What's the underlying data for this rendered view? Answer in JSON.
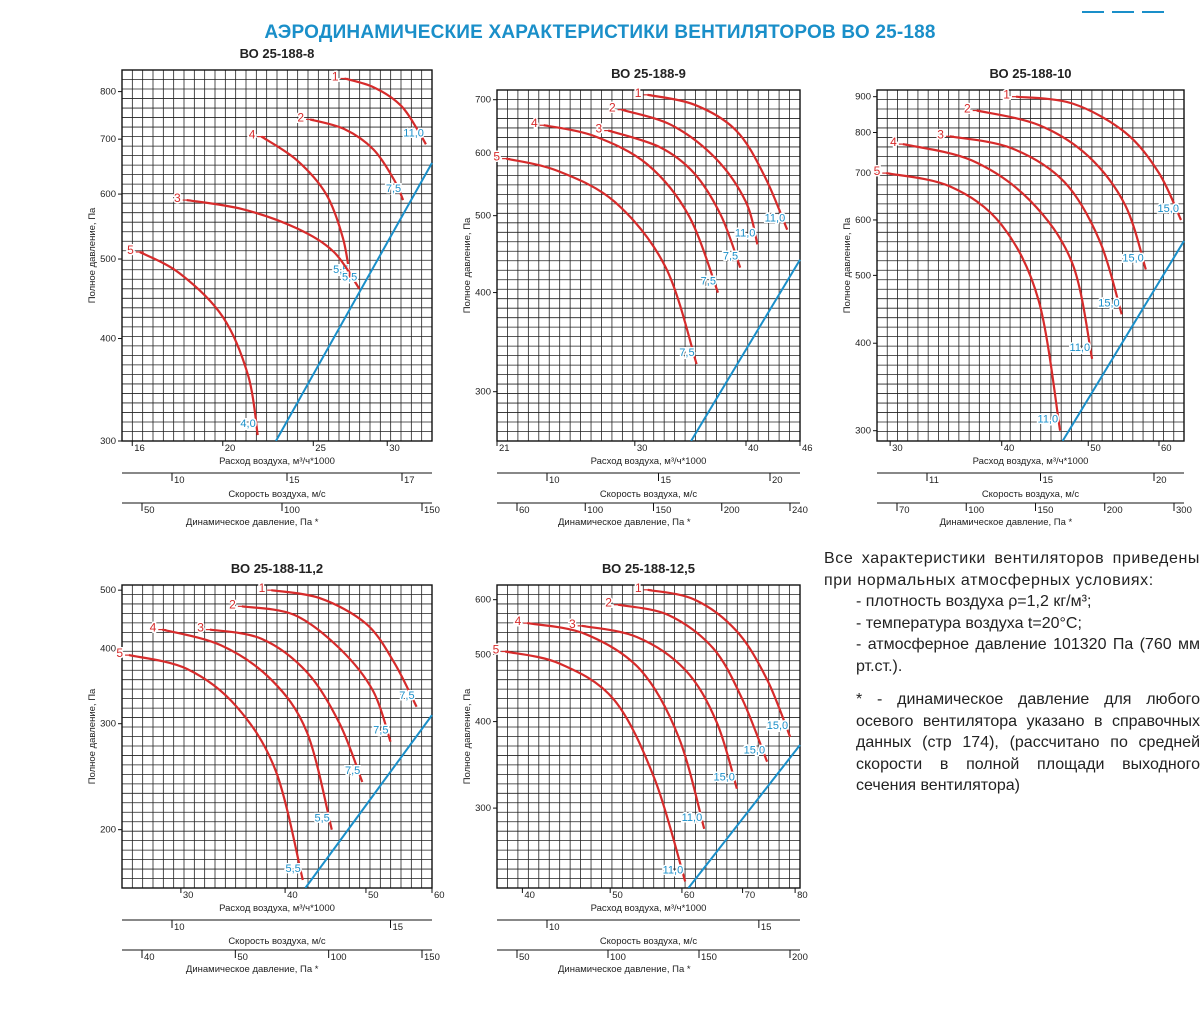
{
  "page": {
    "title": "АЭРОДИНАМИЧЕСКИЕ ХАРАКТЕРИСТИКИ ВЕНТИЛЯТОРОВ ВО 25-188"
  },
  "notes": {
    "intro": "Все характеристики вентиляторов приведены при нормальных атмосферных условиях:",
    "item1": "- плотность воздуха ρ=1,2 кг/м³;",
    "item2": "- температура воздуха t=20°С;",
    "item3": "- атмосферное давление 101320 Па (760 мм рт.ст.).",
    "footnote": "* - динамическое давление для любого осевого вентилятора указано в справочных данных (стр 174), (рассчитано по средней скорости в полной площади выходного сечения вентилятора)"
  },
  "colors": {
    "curve": "#d62b2b",
    "boundary": "#1a8fc9",
    "grid": "#222222",
    "title": "#1a8fc9"
  },
  "chart_data": [
    {
      "type": "line",
      "title": "ВО 25-188-8",
      "ylabel": "Полное давление, Па",
      "xlabel": "Расход воздуха, м³/ч*1000",
      "axis2_label": "Скорость воздуха, м/с",
      "axis3_label": "Динамическое давление, Па *",
      "ylim": [
        300,
        850
      ],
      "yscale": "log",
      "yticks": [
        300,
        400,
        500,
        600,
        700,
        800
      ],
      "xlim": [
        15.6,
        33.5
      ],
      "xscale": "log",
      "xticks": [
        16,
        20,
        25,
        30
      ],
      "axis2_ticks": [
        "10",
        "15",
        "17"
      ],
      "axis3_ticks": [
        "50",
        "100",
        "150"
      ],
      "series": [
        {
          "name": "1",
          "points": [
            [
              27.0,
              830
            ],
            [
              29.0,
              810
            ],
            [
              31.0,
              770
            ],
            [
              32.3,
              720
            ],
            [
              33.0,
              690
            ]
          ]
        },
        {
          "name": "2",
          "points": [
            [
              24.8,
              740
            ],
            [
              27.0,
              720
            ],
            [
              29.0,
              680
            ],
            [
              30.5,
              625
            ],
            [
              31.2,
              590
            ]
          ]
        },
        {
          "name": "4",
          "points": [
            [
              22.0,
              705
            ],
            [
              24.0,
              660
            ],
            [
              25.8,
              600
            ],
            [
              26.9,
              530
            ],
            [
              27.4,
              470
            ]
          ]
        },
        {
          "name": "3",
          "points": [
            [
              18.3,
              590
            ],
            [
              21.0,
              575
            ],
            [
              24.0,
              545
            ],
            [
              26.3,
              510
            ],
            [
              28.0,
              460
            ]
          ]
        },
        {
          "name": "5",
          "points": [
            [
              16.3,
              510
            ],
            [
              18.0,
              480
            ],
            [
              20.0,
              425
            ],
            [
              21.3,
              360
            ],
            [
              21.8,
              305
            ]
          ]
        }
      ],
      "curve_labels": [
        "11,0",
        "7,5",
        "5,5",
        "5,5",
        "4,0"
      ],
      "boundary_line": [
        [
          22.8,
          300
        ],
        [
          33.5,
          655
        ]
      ]
    },
    {
      "type": "line",
      "title": "ВО 25-188-9",
      "ylabel": "Полное давление, Па",
      "xlabel": "Расход воздуха, м³/ч*1000",
      "axis2_label": "Скорость воздуха, м/с",
      "axis3_label": "Динамическое давление, Па *",
      "ylim": [
        260,
        720
      ],
      "yscale": "log",
      "yticks": [
        300,
        400,
        500,
        600,
        700
      ],
      "xlim": [
        21,
        46
      ],
      "xscale": "log",
      "xticks": [
        21,
        30,
        40,
        46
      ],
      "axis2_ticks": [
        "10",
        "15",
        "20"
      ],
      "axis3_ticks": [
        "60",
        "100",
        "150",
        "200",
        "240"
      ],
      "series": [
        {
          "name": "1",
          "points": [
            [
              31.0,
              710
            ],
            [
              35.0,
              690
            ],
            [
              39.0,
              640
            ],
            [
              42.0,
              560
            ],
            [
              44.5,
              480
            ]
          ]
        },
        {
          "name": "2",
          "points": [
            [
              29.0,
              680
            ],
            [
              33.0,
              650
            ],
            [
              37.0,
              590
            ],
            [
              40.0,
              520
            ],
            [
              41.2,
              460
            ]
          ]
        },
        {
          "name": "3",
          "points": [
            [
              28.0,
              640
            ],
            [
              32.0,
              610
            ],
            [
              35.0,
              565
            ],
            [
              37.5,
              500
            ],
            [
              39.4,
              430
            ]
          ]
        },
        {
          "name": "4",
          "points": [
            [
              23.7,
              650
            ],
            [
              27.0,
              630
            ],
            [
              31.0,
              580
            ],
            [
              34.5,
              500
            ],
            [
              37.2,
              400
            ]
          ]
        },
        {
          "name": "5",
          "points": [
            [
              21.5,
              590
            ],
            [
              24.5,
              570
            ],
            [
              28.5,
              520
            ],
            [
              32.5,
              430
            ],
            [
              35.2,
              325
            ]
          ]
        }
      ],
      "curve_labels": [
        "11,0",
        "11,0",
        "7,5",
        "7,5",
        "7,5"
      ],
      "boundary_line": [
        [
          34.7,
          260
        ],
        [
          46,
          440
        ]
      ]
    },
    {
      "type": "line",
      "title": "ВО 25-188-10",
      "ylabel": "Полное давление, Па",
      "xlabel": "Расход воздуха, м³/ч*1000",
      "axis2_label": "Скорость воздуха, м/с",
      "axis3_label": "Динамическое давление, Па *",
      "ylim": [
        290,
        920
      ],
      "yscale": "log",
      "yticks": [
        300,
        400,
        500,
        600,
        700,
        800,
        900
      ],
      "xlim": [
        29,
        64
      ],
      "xscale": "log",
      "xticks": [
        30,
        40,
        50,
        60
      ],
      "axis2_ticks": [
        "11",
        "15",
        "20"
      ],
      "axis3_ticks": [
        "70",
        "100",
        "150",
        "200",
        "300"
      ],
      "series": [
        {
          "name": "1",
          "points": [
            [
              41.5,
              900
            ],
            [
              48.0,
              880
            ],
            [
              55.0,
              800
            ],
            [
              60.0,
              700
            ],
            [
              63.5,
              600
            ]
          ]
        },
        {
          "name": "2",
          "points": [
            [
              37.5,
              860
            ],
            [
              44.0,
              820
            ],
            [
              50.0,
              740
            ],
            [
              55.0,
              630
            ],
            [
              58.0,
              510
            ]
          ]
        },
        {
          "name": "3",
          "points": [
            [
              35.0,
              790
            ],
            [
              41.0,
              760
            ],
            [
              47.0,
              680
            ],
            [
              51.5,
              560
            ],
            [
              54.5,
              440
            ]
          ]
        },
        {
          "name": "4",
          "points": [
            [
              31.0,
              770
            ],
            [
              37.0,
              730
            ],
            [
              43.0,
              640
            ],
            [
              48.0,
              520
            ],
            [
              50.5,
              380
            ]
          ]
        },
        {
          "name": "5",
          "points": [
            [
              29.7,
              700
            ],
            [
              35.0,
              670
            ],
            [
              40.0,
              590
            ],
            [
              44.0,
              460
            ],
            [
              46.5,
              300
            ]
          ]
        }
      ],
      "curve_labels": [
        "15,0",
        "15,0",
        "15,0",
        "11,0",
        "11,0"
      ],
      "boundary_line": [
        [
          46.8,
          290
        ],
        [
          64,
          560
        ]
      ]
    },
    {
      "type": "line",
      "title": "ВО 25-188-11,2",
      "ylabel": "Полное давление, Па",
      "xlabel": "Расход воздуха, м³/ч*1000",
      "axis2_label": "Скорость воздуха, м/с",
      "axis3_label": "Динамическое давление, Па *",
      "ylim": [
        160,
        510
      ],
      "yscale": "log",
      "yticks": [
        200,
        300,
        400,
        500
      ],
      "xlim": [
        25.5,
        60
      ],
      "xscale": "log",
      "xticks": [
        30,
        40,
        50,
        60
      ],
      "axis2_ticks": [
        "10",
        "15"
      ],
      "axis3_ticks": [
        "40",
        "50",
        "100",
        "150"
      ],
      "series": [
        {
          "name": "1",
          "points": [
            [
              38.5,
              500
            ],
            [
              44.0,
              485
            ],
            [
              50.0,
              440
            ],
            [
              54.0,
              380
            ],
            [
              57.5,
              320
            ]
          ]
        },
        {
          "name": "2",
          "points": [
            [
              35.5,
              470
            ],
            [
              41.0,
              455
            ],
            [
              46.5,
              400
            ],
            [
              51.0,
              340
            ],
            [
              53.5,
              280
            ]
          ]
        },
        {
          "name": "3",
          "points": [
            [
              32.5,
              430
            ],
            [
              37.5,
              415
            ],
            [
              42.5,
              365
            ],
            [
              46.5,
              300
            ],
            [
              49.5,
              240
            ]
          ]
        },
        {
          "name": "4",
          "points": [
            [
              28.5,
              430
            ],
            [
              33.5,
              405
            ],
            [
              38.5,
              355
            ],
            [
              42.5,
              290
            ],
            [
              45.5,
              200
            ]
          ]
        },
        {
          "name": "5",
          "points": [
            [
              26.0,
              390
            ],
            [
              30.5,
              370
            ],
            [
              35.0,
              320
            ],
            [
              39.0,
              250
            ],
            [
              42.0,
              165
            ]
          ]
        }
      ],
      "curve_labels": [
        "7,5",
        "7,5",
        "7,5",
        "5,5",
        "5,5"
      ],
      "boundary_line": [
        [
          42.3,
          160
        ],
        [
          60,
          310
        ]
      ]
    },
    {
      "type": "line",
      "title": "ВО 25-188-12,5",
      "ylabel": "Полное давление, Па",
      "xlabel": "Расход воздуха, м³/ч*1000",
      "axis2_label": "Скорость воздуха, м/с",
      "axis3_label": "Динамическое давление, Па *",
      "ylim": [
        230,
        630
      ],
      "yscale": "log",
      "yticks": [
        300,
        400,
        500,
        600
      ],
      "xlim": [
        37.5,
        81
      ],
      "xscale": "log",
      "xticks": [
        40,
        50,
        60,
        70,
        80
      ],
      "axis2_ticks": [
        "10",
        "15"
      ],
      "axis3_ticks": [
        "50",
        "100",
        "150",
        "200"
      ],
      "series": [
        {
          "name": "1",
          "points": [
            [
              55.0,
              620
            ],
            [
              62.0,
              600
            ],
            [
              69.0,
              540
            ],
            [
              74.5,
              460
            ],
            [
              79.0,
              380
            ]
          ]
        },
        {
          "name": "2",
          "points": [
            [
              51.0,
              590
            ],
            [
              58.0,
              570
            ],
            [
              65.0,
              510
            ],
            [
              70.0,
              430
            ],
            [
              74.5,
              350
            ]
          ]
        },
        {
          "name": "3",
          "points": [
            [
              46.5,
              550
            ],
            [
              53.5,
              530
            ],
            [
              60.5,
              475
            ],
            [
              65.5,
              400
            ],
            [
              69.0,
              320
            ]
          ]
        },
        {
          "name": "4",
          "points": [
            [
              40.5,
              555
            ],
            [
              47.0,
              535
            ],
            [
              54.0,
              475
            ],
            [
              59.5,
              380
            ],
            [
              63.5,
              280
            ]
          ]
        },
        {
          "name": "5",
          "points": [
            [
              38.3,
              505
            ],
            [
              44.0,
              485
            ],
            [
              50.5,
              430
            ],
            [
              56.0,
              330
            ],
            [
              60.5,
              235
            ]
          ]
        }
      ],
      "curve_labels": [
        "15,0",
        "15,0",
        "15,0",
        "11,0",
        "11,0"
      ],
      "boundary_line": [
        [
          61.0,
          230
        ],
        [
          81,
          370
        ]
      ]
    }
  ]
}
